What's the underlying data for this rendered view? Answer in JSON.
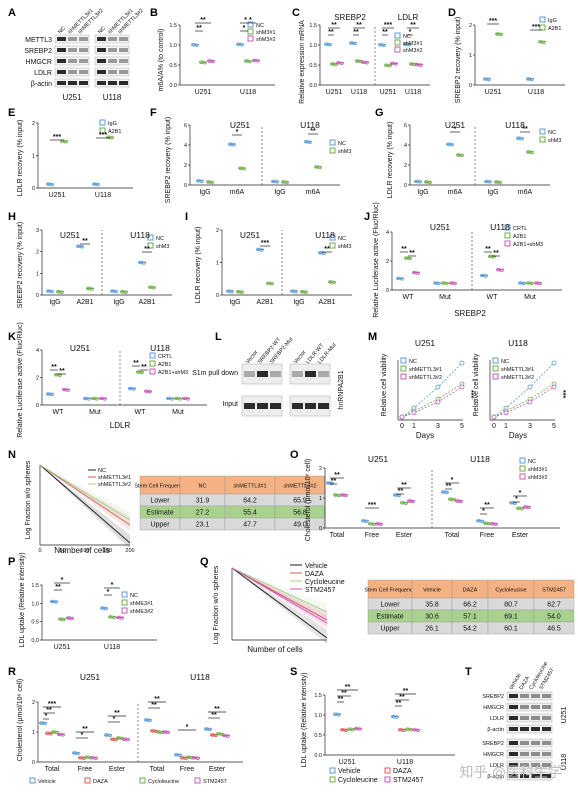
{
  "colors": {
    "blue": "#5b9bd5",
    "green": "#70ad47",
    "pink": "#c55ab8",
    "red": "#e15759",
    "orange": "#f4b183",
    "lgreen": "#a9d18e",
    "gray": "#d9d9d9",
    "black": "#222222"
  },
  "A": {
    "panel": "A",
    "rows": [
      "METTL3",
      "SREBP2",
      "HMGCR",
      "LDLR",
      "β-actin"
    ],
    "lanes": [
      "NC",
      "shMETTL3#1",
      "shMETTL3#2",
      "NC",
      "shMETTL3#1",
      "shMETTL3#2"
    ],
    "groups": [
      "U251",
      "U118"
    ]
  },
  "B": {
    "panel": "B",
    "ylabel": "m6A/A% (to control)",
    "groups": [
      "U251",
      "U118"
    ],
    "legend": [
      "NC",
      "shM3#1",
      "shM3#2"
    ],
    "ticks": [
      "0.0",
      "0.5",
      "1.0",
      "1.5"
    ],
    "sig": [
      "**",
      "**",
      "* *",
      "*"
    ]
  },
  "C": {
    "panel": "C",
    "ylabel": "Relative expression mRNA",
    "headers": [
      "SREBP2",
      "LDLR"
    ],
    "groups": [
      "U251",
      "U118",
      "U251",
      "U118"
    ],
    "legend": [
      "NC",
      "shM3#1",
      "shM3#2"
    ],
    "ticks": [
      "0.0",
      "0.5",
      "1.0",
      "1.5"
    ],
    "sig": [
      "**",
      "**",
      "**",
      "**",
      "***",
      "**",
      "**",
      "*"
    ]
  },
  "D": {
    "panel": "D",
    "ylabel": "SREBP2 recovery (% input)",
    "groups": [
      "U251",
      "U118"
    ],
    "legend": [
      "IgG",
      "A2B1"
    ],
    "ticks": [
      "0",
      "1",
      "2"
    ],
    "sig": [
      "***",
      "***"
    ]
  },
  "E": {
    "panel": "E",
    "ylabel": "LDLR recovery (% input)",
    "groups": [
      "U251",
      "U118"
    ],
    "legend": [
      "IgG",
      "A2B1"
    ],
    "ticks": [
      "0",
      "1",
      "2"
    ],
    "sig": [
      "***",
      "***"
    ]
  },
  "F": {
    "panel": "F",
    "ylabel": "SREBP2 recovery (% input)",
    "headers": [
      "U251",
      "U118"
    ],
    "cats": [
      "IgG",
      "m6A",
      "IgG",
      "m6A"
    ],
    "legend": [
      "NC",
      "shM3"
    ],
    "ticks": [
      "0",
      "2",
      "4",
      "6"
    ],
    "sig": [
      "*",
      "**"
    ]
  },
  "G": {
    "panel": "G",
    "ylabel": "LDLR recovery (% input)",
    "headers": [
      "U251",
      "U118"
    ],
    "cats": [
      "IgG",
      "m6A",
      "IgG",
      "m6A"
    ],
    "legend": [
      "NC",
      "shM3"
    ],
    "ticks": [
      "0",
      "2",
      "4",
      "6"
    ],
    "sig": [
      "*",
      "**"
    ]
  },
  "H": {
    "panel": "H",
    "ylabel": "SREBP2 recovery (% input)",
    "headers": [
      "U251",
      "U118"
    ],
    "cats": [
      "IgG",
      "A2B1",
      "IgG",
      "A2B1"
    ],
    "legend": [
      "NC",
      "shM3"
    ],
    "ticks": [
      "0",
      "1",
      "2",
      "3"
    ],
    "sig": [
      "**",
      "**"
    ]
  },
  "I": {
    "panel": "I",
    "ylabel": "LDLR recovery (% input)",
    "headers": [
      "U251",
      "U118"
    ],
    "cats": [
      "IgG",
      "A2B1",
      "IgG",
      "A2B1"
    ],
    "legend": [
      "NC",
      "shM3"
    ],
    "ticks": [
      "0",
      "1",
      "2"
    ],
    "sig": [
      "***",
      "**"
    ]
  },
  "J": {
    "panel": "J",
    "ylabel": "Relative Luciferase active (Fluc/Rluc)",
    "headers": [
      "U251",
      "U118"
    ],
    "cats": [
      "WT",
      "Mut",
      "WT",
      "Mut"
    ],
    "xtitle": "SREBP2",
    "legend": [
      "CRTL",
      "A2B1",
      "A2B1+shM3"
    ],
    "ticks": [
      "0",
      "2",
      "4"
    ],
    "sig": [
      "**",
      "**",
      "**",
      "**"
    ]
  },
  "K": {
    "panel": "K",
    "ylabel": "Relative Luciferase active (Fluc/Rluc)",
    "headers": [
      "U251",
      "U118"
    ],
    "cats": [
      "WT",
      "Mut",
      "WT",
      "Mut"
    ],
    "xtitle": "LDLR",
    "legend": [
      "CRTL",
      "A2B1",
      "A2B1+shM3"
    ],
    "ticks": [
      "0",
      "2",
      "4"
    ],
    "sig": [
      "**",
      "**",
      "**",
      "**"
    ]
  },
  "L": {
    "panel": "L",
    "lanes": [
      "Vector",
      "SREBP2-WT",
      "SREBP2-Mut",
      "Vector",
      "LDLR-WT",
      "LDLR-Mut"
    ],
    "rows": [
      "S1m pull down",
      "Input"
    ],
    "side": "hnRNPA2B1"
  },
  "M": {
    "panel": "M",
    "titles": [
      "U251",
      "U118"
    ],
    "ylabel": "Relative cell viability",
    "xlabel": "Days",
    "xticks": [
      "0",
      "1",
      "3",
      "5"
    ],
    "legend": [
      "NC",
      "shMETTL3#1",
      "shMETTL3#2"
    ],
    "sig": [
      "***",
      "***"
    ]
  },
  "N": {
    "panel": "N",
    "ylabel": "Log Fraction w/o spheres",
    "xlabel": "Number of cells",
    "xticks": [
      "0",
      "50",
      "100",
      "150",
      "200"
    ],
    "legend": [
      "NC",
      "shMETTL3#1",
      "shMETTL3#2"
    ],
    "table": {
      "head": [
        "Stem Cell Frequency",
        "NC",
        "shMETTL3#1",
        "shMETTL3#2"
      ],
      "rows": [
        [
          "Lower",
          "31.9",
          "64.2",
          "65.9"
        ],
        [
          "Estimate",
          "27.2",
          "55.4",
          "56.8"
        ],
        [
          "Upper",
          "23.1",
          "47.7",
          "49.0"
        ]
      ]
    }
  },
  "O": {
    "panel": "O",
    "ylabel": "Cholesterol (μmol/10⁶ cell)",
    "headers": [
      "U251",
      "U118"
    ],
    "cats": [
      "Total",
      "Free",
      "Ester",
      "Total",
      "Free",
      "Ester"
    ],
    "legend": [
      "NC",
      "shM3#1",
      "shM3#2"
    ],
    "ticks": [
      "0",
      "1",
      "2"
    ],
    "sig": [
      "**",
      "**",
      "***",
      "**",
      "**",
      "*",
      "**",
      "**",
      "*",
      "*",
      "*"
    ]
  },
  "P": {
    "panel": "P",
    "ylabel": "LDL uptake (Relative intensity)",
    "groups": [
      "U251",
      "U118"
    ],
    "legend": [
      "NC",
      "shME3#1",
      "shME3#2"
    ],
    "ticks": [
      "0.0",
      "0.5",
      "1.0",
      "1.5"
    ],
    "sig": [
      "*",
      "**",
      "*",
      "*"
    ]
  },
  "Q": {
    "panel": "Q",
    "ylabel": "Log Fraction w/o spheres",
    "xlabel": "Number of cells",
    "legend": [
      "Vehicle",
      "DAZA",
      "Cycloleucine",
      "STM2457"
    ],
    "table": {
      "head": [
        "Stem Cell Frequency",
        "Vehicle",
        "DAZA",
        "Cycloleucine",
        "STM2457"
      ],
      "rows": [
        [
          "Lower",
          "35.8",
          "66.2",
          "80.7",
          "62.7"
        ],
        [
          "Estimate",
          "30.6",
          "57.1",
          "69.1",
          "54.0"
        ],
        [
          "Upper",
          "26.1",
          "54.2",
          "60.1",
          "46.5"
        ]
      ]
    }
  },
  "R": {
    "panel": "R",
    "ylabel": "Cholesterol (μmol/10⁶ cell)",
    "headers": [
      "U251",
      "U118"
    ],
    "cats": [
      "Total",
      "Free",
      "Ester",
      "Total",
      "Free",
      "Ester"
    ],
    "legend": [
      "Vehicle",
      "DAZA",
      "Cycloleucine",
      "STM2457"
    ],
    "ticks": [
      "0",
      "1",
      "2"
    ],
    "sig": [
      "***",
      "**",
      "*",
      "**",
      "*",
      "**",
      "*",
      "**",
      "**",
      "*",
      "**",
      "**"
    ]
  },
  "S": {
    "panel": "S",
    "ylabel": "LDL uptake (Relative intensity)",
    "groups": [
      "U251",
      "U118"
    ],
    "legend": [
      "Vehicle",
      "DAZA",
      "Cycloleucine",
      "STM2457"
    ],
    "ticks": [
      "0.0",
      "0.5",
      "1.0",
      "1.5"
    ],
    "sig": [
      "**",
      "**",
      "**",
      "**",
      "**",
      "**"
    ]
  },
  "T": {
    "panel": "T",
    "lanes": [
      "Vehicle",
      "DAZA",
      "Cycloleucine",
      "STM2457"
    ],
    "rows": [
      "SREBP2",
      "HMGCR",
      "LDLR",
      "β-actin",
      "SREBP2",
      "HMGCR",
      "LDLR",
      "β-actin"
    ],
    "groups": [
      "U251",
      "U118"
    ]
  },
  "watermark": "知乎 @医科生学"
}
